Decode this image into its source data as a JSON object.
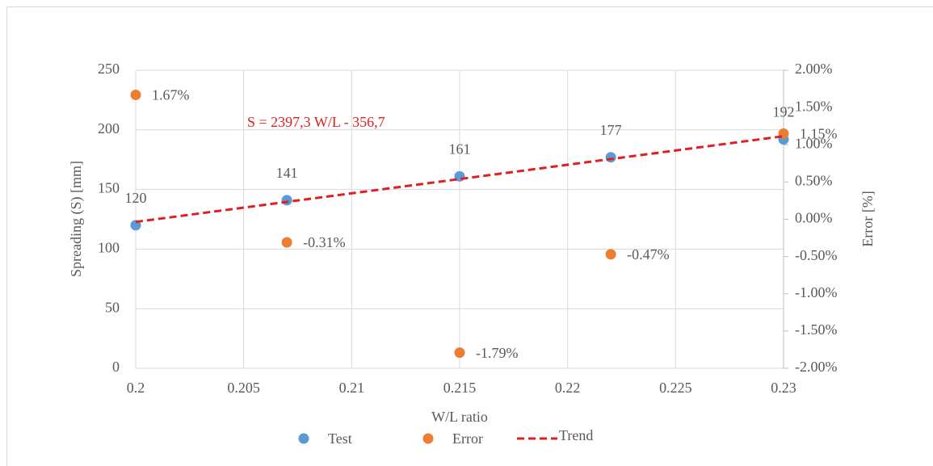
{
  "chart_data": {
    "type": "scatter",
    "xlabel": "W/L ratio",
    "ylabel": "Spreading (S) [mm]",
    "y2label": "Error [%]",
    "annotation": "S = 2397,3 W/L - 356,7",
    "x": [
      0.2,
      0.207,
      0.215,
      0.222,
      0.23
    ],
    "series": [
      {
        "name": "Test",
        "color": "#5b9bd5",
        "values": [
          120,
          141,
          161,
          177,
          192
        ]
      },
      {
        "name": "Error",
        "color": "#ed7d31",
        "axis": "y2",
        "values": [
          1.67,
          -0.31,
          -1.79,
          -0.47,
          1.15
        ],
        "value_labels": [
          "1.67%",
          "-0.31%",
          "-1.79%",
          "-0.47%",
          "1.15%"
        ]
      },
      {
        "name": "Trend",
        "color": "#e02020",
        "style": "dashed",
        "x": [
          0.2,
          0.23
        ],
        "values": [
          122.8,
          194.7
        ]
      }
    ],
    "xlim": [
      0.2,
      0.23
    ],
    "xticks": [
      0.2,
      0.205,
      0.21,
      0.215,
      0.22,
      0.225,
      0.23
    ],
    "ylim": [
      0,
      250
    ],
    "yticks": [
      0,
      50,
      100,
      150,
      200,
      250
    ],
    "y2lim": [
      -2,
      2
    ],
    "y2ticks": [
      {
        "value": -2,
        "label": "-2.00%"
      },
      {
        "value": -1.5,
        "label": "-1.50%"
      },
      {
        "value": -1,
        "label": "-1.00%"
      },
      {
        "value": -0.5,
        "label": "-0.50%"
      },
      {
        "value": 0,
        "label": "0.00%"
      },
      {
        "value": 0.5,
        "label": "0.50%"
      },
      {
        "value": 1,
        "label": "1.00%"
      },
      {
        "value": 1.5,
        "label": "1.50%"
      },
      {
        "value": 2,
        "label": "2.00%"
      }
    ],
    "grid": true,
    "legend": "bottom"
  }
}
